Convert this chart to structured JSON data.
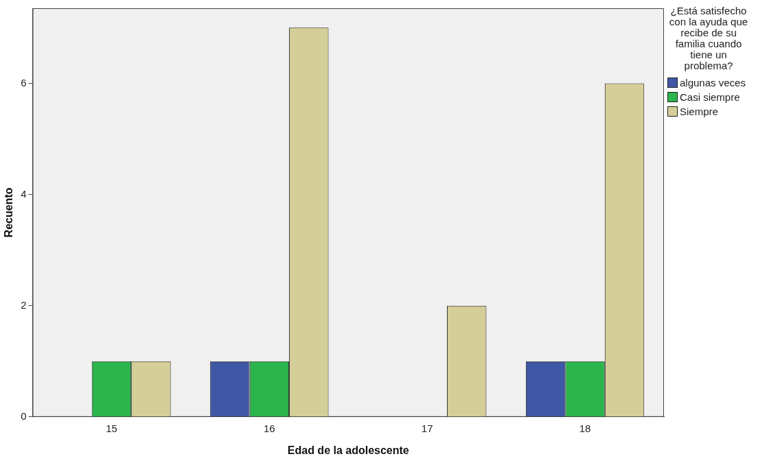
{
  "chart_data": {
    "type": "bar",
    "xlabel": "Edad de la adolescente",
    "ylabel": "Recuento",
    "legend_title": "¿Está satisfecho con la ayuda que recibe de su familia cuando tiene un problema?",
    "categories": [
      "15",
      "16",
      "17",
      "18"
    ],
    "series": [
      {
        "name": "algunas veces",
        "color": "#3f57a6",
        "values": [
          null,
          1,
          null,
          1
        ]
      },
      {
        "name": "Casi siempre",
        "color": "#2bb54c",
        "values": [
          1,
          1,
          null,
          1
        ]
      },
      {
        "name": "Siempre",
        "color": "#d4ce98",
        "values": [
          1,
          7,
          2,
          6
        ]
      }
    ],
    "ylim": [
      0,
      7.35
    ],
    "yticks": [
      0,
      2,
      4,
      6
    ],
    "grid": false,
    "legend": "top right"
  }
}
